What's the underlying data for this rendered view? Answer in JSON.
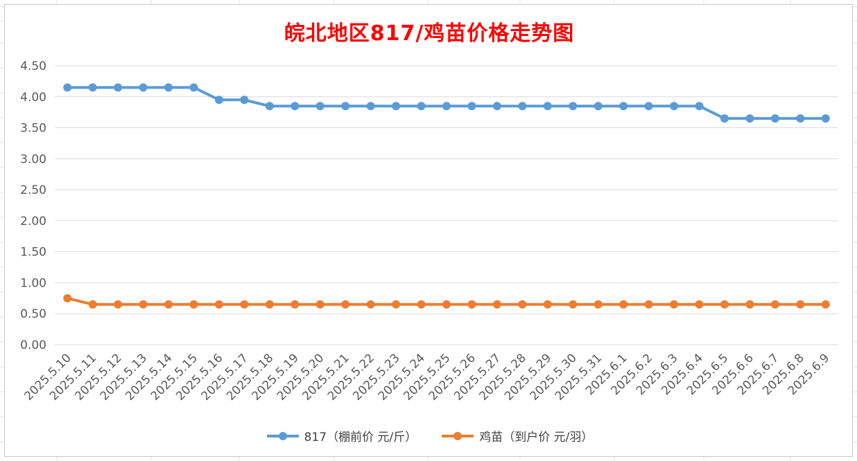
{
  "chart_data": {
    "type": "line",
    "title": "皖北地区817/鸡苗价格走势图",
    "categories": [
      "2025.5.10",
      "2025.5.11",
      "2025.5.12",
      "2025.5.13",
      "2025.5.14",
      "2025.5.15",
      "2025.5.16",
      "2025.5.17",
      "2025.5.18",
      "2025.5.19",
      "2025.5.20",
      "2025.5.21",
      "2025.5.22",
      "2025.5.23",
      "2025.5.24",
      "2025.5.25",
      "2025.5.26",
      "2025.5.27",
      "2025.5.28",
      "2025.5.29",
      "2025.5.30",
      "2025.5.31",
      "2025.6.1",
      "2025.6.2",
      "2025.6.3",
      "2025.6.4",
      "2025.6.5",
      "2025.6.6",
      "2025.6.7",
      "2025.6.8",
      "2025.6.9"
    ],
    "series": [
      {
        "name": "817（棚前价 元/斤）",
        "color": "#5b9bd5",
        "values": [
          4.15,
          4.15,
          4.15,
          4.15,
          4.15,
          4.15,
          3.95,
          3.95,
          3.85,
          3.85,
          3.85,
          3.85,
          3.85,
          3.85,
          3.85,
          3.85,
          3.85,
          3.85,
          3.85,
          3.85,
          3.85,
          3.85,
          3.85,
          3.85,
          3.85,
          3.85,
          3.65,
          3.65,
          3.65,
          3.65,
          3.65
        ]
      },
      {
        "name": "鸡苗（到户价 元/羽）",
        "color": "#ed7d31",
        "values": [
          0.75,
          0.65,
          0.65,
          0.65,
          0.65,
          0.65,
          0.65,
          0.65,
          0.65,
          0.65,
          0.65,
          0.65,
          0.65,
          0.65,
          0.65,
          0.65,
          0.65,
          0.65,
          0.65,
          0.65,
          0.65,
          0.65,
          0.65,
          0.65,
          0.65,
          0.65,
          0.65,
          0.65,
          0.65,
          0.65,
          0.65
        ]
      }
    ],
    "yticks": [
      "0.00",
      "0.50",
      "1.00",
      "1.50",
      "2.00",
      "2.50",
      "3.00",
      "3.50",
      "4.00",
      "4.50"
    ],
    "ylim": [
      0,
      4.5
    ],
    "grid": true,
    "legend_position": "bottom"
  }
}
